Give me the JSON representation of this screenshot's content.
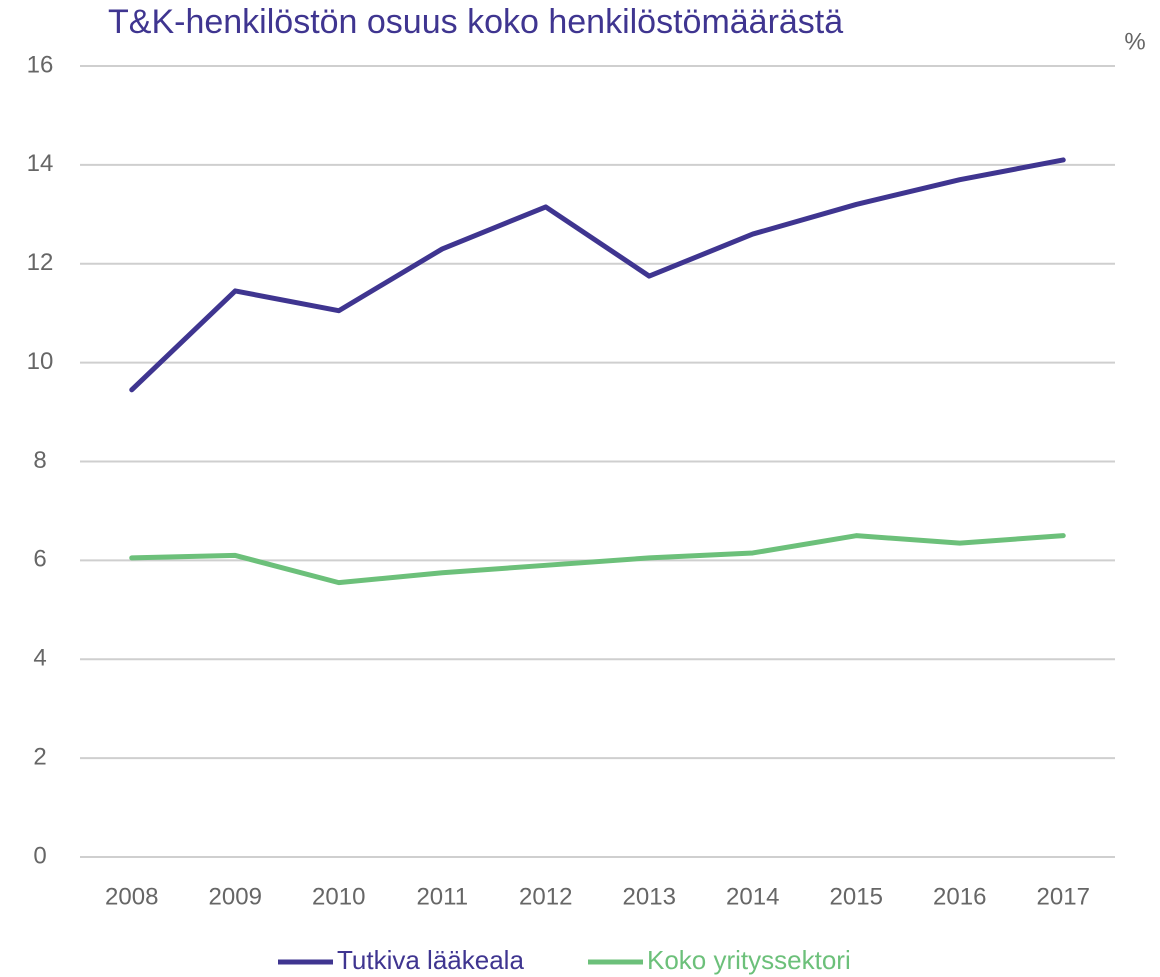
{
  "chart_data": {
    "type": "line",
    "title": "T&K-henkilöstön osuus koko henkilöstömäärästä",
    "y_label": "%",
    "categories": [
      "2008",
      "2009",
      "2010",
      "2011",
      "2012",
      "2013",
      "2014",
      "2015",
      "2016",
      "2017"
    ],
    "series": [
      {
        "name": "Tutkiva lääkeala",
        "color": "#3f3590",
        "values": [
          9.45,
          11.45,
          11.05,
          12.3,
          13.15,
          11.75,
          12.6,
          13.2,
          13.7,
          14.1
        ]
      },
      {
        "name": "Koko yrityssektori",
        "color": "#6cc07a",
        "values": [
          6.05,
          6.1,
          5.55,
          5.75,
          5.9,
          6.05,
          6.15,
          6.5,
          6.35,
          6.5
        ]
      }
    ],
    "ylim": [
      0,
      16
    ],
    "yticks": [
      0,
      2,
      4,
      6,
      8,
      10,
      12,
      14,
      16
    ],
    "grid": true,
    "legend": "bottom"
  }
}
